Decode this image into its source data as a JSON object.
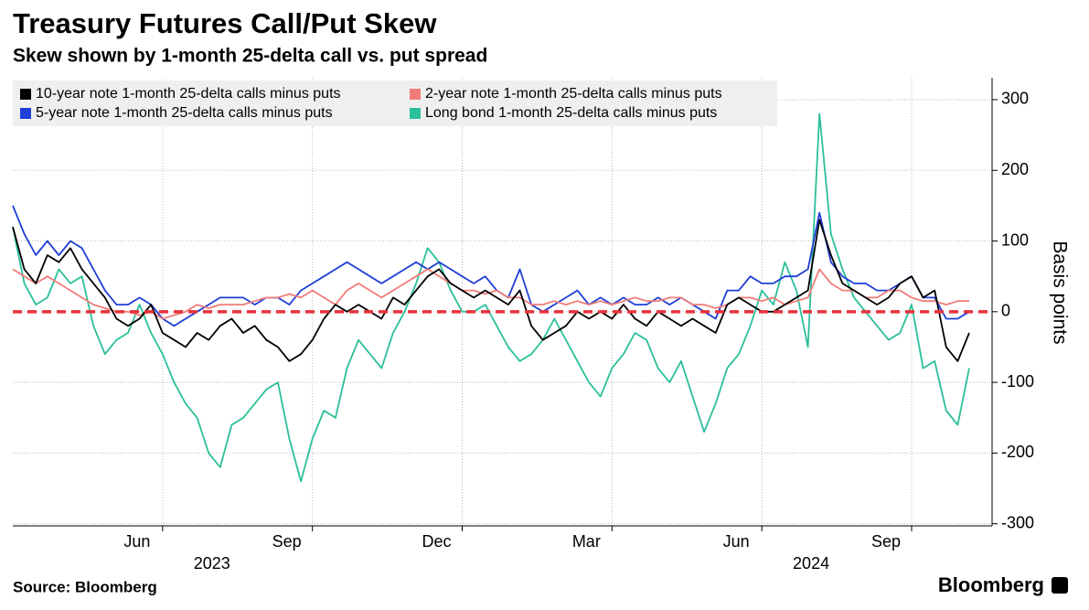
{
  "chart_data": {
    "type": "line",
    "title": "Treasury Futures Call/Put Skew",
    "subtitle": "Skew shown by 1-month 25-delta call vs. put spread",
    "y_axis_label": "Basis points",
    "source": "Source: Bloomberg",
    "brand": "Bloomberg",
    "year_labels": [
      "2023",
      "2024"
    ],
    "categories": [
      null,
      null,
      null,
      null,
      null,
      null,
      null,
      null,
      null,
      null,
      null,
      null,
      null,
      "Jun",
      null,
      null,
      null,
      null,
      null,
      null,
      null,
      null,
      null,
      null,
      null,
      null,
      "Sep",
      null,
      null,
      null,
      null,
      null,
      null,
      null,
      null,
      null,
      null,
      null,
      null,
      "Dec",
      null,
      null,
      null,
      null,
      null,
      null,
      null,
      null,
      null,
      null,
      null,
      null,
      "Mar",
      null,
      null,
      null,
      null,
      null,
      null,
      null,
      null,
      null,
      null,
      null,
      null,
      "Jun",
      null,
      null,
      null,
      null,
      null,
      null,
      null,
      null,
      null,
      null,
      null,
      null,
      "Sep",
      null,
      null,
      null,
      null,
      null
    ],
    "series": [
      {
        "name": "10-year note 1-month 25-delta calls minus puts",
        "color": "#000000",
        "values": [
          120,
          60,
          40,
          80,
          70,
          90,
          60,
          40,
          20,
          -10,
          -20,
          -10,
          10,
          -30,
          -40,
          -50,
          -30,
          -40,
          -20,
          -10,
          -30,
          -20,
          -40,
          -50,
          -70,
          -60,
          -40,
          -10,
          10,
          0,
          10,
          0,
          -10,
          20,
          10,
          30,
          50,
          60,
          40,
          30,
          20,
          30,
          20,
          10,
          30,
          -20,
          -40,
          -30,
          -20,
          0,
          -10,
          0,
          -10,
          10,
          -10,
          -20,
          0,
          -10,
          -20,
          -10,
          -20,
          -30,
          10,
          20,
          10,
          0,
          0,
          10,
          20,
          30,
          130,
          80,
          40,
          30,
          20,
          10,
          20,
          40,
          50,
          20,
          30,
          -50,
          -70,
          -30
        ]
      },
      {
        "name": "2-year note 1-month 25-delta calls minus puts",
        "color": "#f07c78",
        "values": [
          60,
          50,
          40,
          50,
          40,
          30,
          20,
          10,
          5,
          0,
          0,
          -5,
          0,
          -10,
          -5,
          0,
          10,
          5,
          10,
          10,
          10,
          15,
          20,
          20,
          25,
          20,
          30,
          20,
          10,
          30,
          40,
          30,
          20,
          30,
          40,
          50,
          60,
          50,
          40,
          30,
          30,
          25,
          30,
          20,
          20,
          10,
          10,
          15,
          10,
          15,
          10,
          15,
          10,
          15,
          20,
          15,
          15,
          20,
          20,
          10,
          10,
          5,
          10,
          20,
          20,
          15,
          20,
          10,
          15,
          20,
          60,
          40,
          30,
          30,
          20,
          20,
          30,
          30,
          20,
          15,
          15,
          10,
          15,
          15
        ]
      },
      {
        "name": "5-year note 1-month 25-delta calls minus puts",
        "color": "#1f3fd6",
        "values": [
          150,
          110,
          80,
          100,
          80,
          100,
          90,
          60,
          30,
          10,
          10,
          20,
          10,
          -10,
          -20,
          -10,
          0,
          10,
          20,
          20,
          20,
          10,
          20,
          20,
          10,
          30,
          40,
          50,
          60,
          70,
          60,
          50,
          40,
          50,
          60,
          70,
          60,
          70,
          60,
          50,
          40,
          50,
          30,
          20,
          60,
          10,
          0,
          10,
          20,
          30,
          10,
          20,
          10,
          20,
          10,
          10,
          20,
          10,
          20,
          10,
          0,
          -10,
          30,
          30,
          50,
          40,
          40,
          50,
          50,
          60,
          140,
          70,
          50,
          40,
          40,
          30,
          30,
          40,
          50,
          20,
          20,
          -10,
          -10,
          0
        ]
      },
      {
        "name": "Long bond 1-month 25-delta calls minus puts",
        "color": "#2bbf9a",
        "values": [
          120,
          40,
          10,
          20,
          60,
          40,
          50,
          -20,
          -60,
          -40,
          -30,
          10,
          -30,
          -60,
          -100,
          -130,
          -150,
          -200,
          -220,
          -160,
          -150,
          -130,
          -110,
          -100,
          -180,
          -240,
          -180,
          -140,
          -150,
          -80,
          -40,
          -60,
          -80,
          -30,
          0,
          40,
          90,
          70,
          30,
          0,
          0,
          10,
          -20,
          -50,
          -70,
          -60,
          -40,
          -10,
          -40,
          -70,
          -100,
          -120,
          -80,
          -60,
          -30,
          -40,
          -80,
          -100,
          -70,
          -120,
          -170,
          -130,
          -80,
          -60,
          -20,
          30,
          10,
          70,
          30,
          -50,
          280,
          110,
          60,
          20,
          0,
          -20,
          -40,
          -30,
          10,
          -80,
          -70,
          -140,
          -160,
          -80
        ]
      }
    ],
    "ylim": [
      -303,
      331
    ],
    "yticks": [
      -300,
      -200,
      -100,
      0,
      100,
      200,
      300
    ],
    "y_axis_side": "right",
    "grid": true,
    "reference_line": {
      "value": 0,
      "color": "#e8323c"
    },
    "legend": "top-left"
  }
}
